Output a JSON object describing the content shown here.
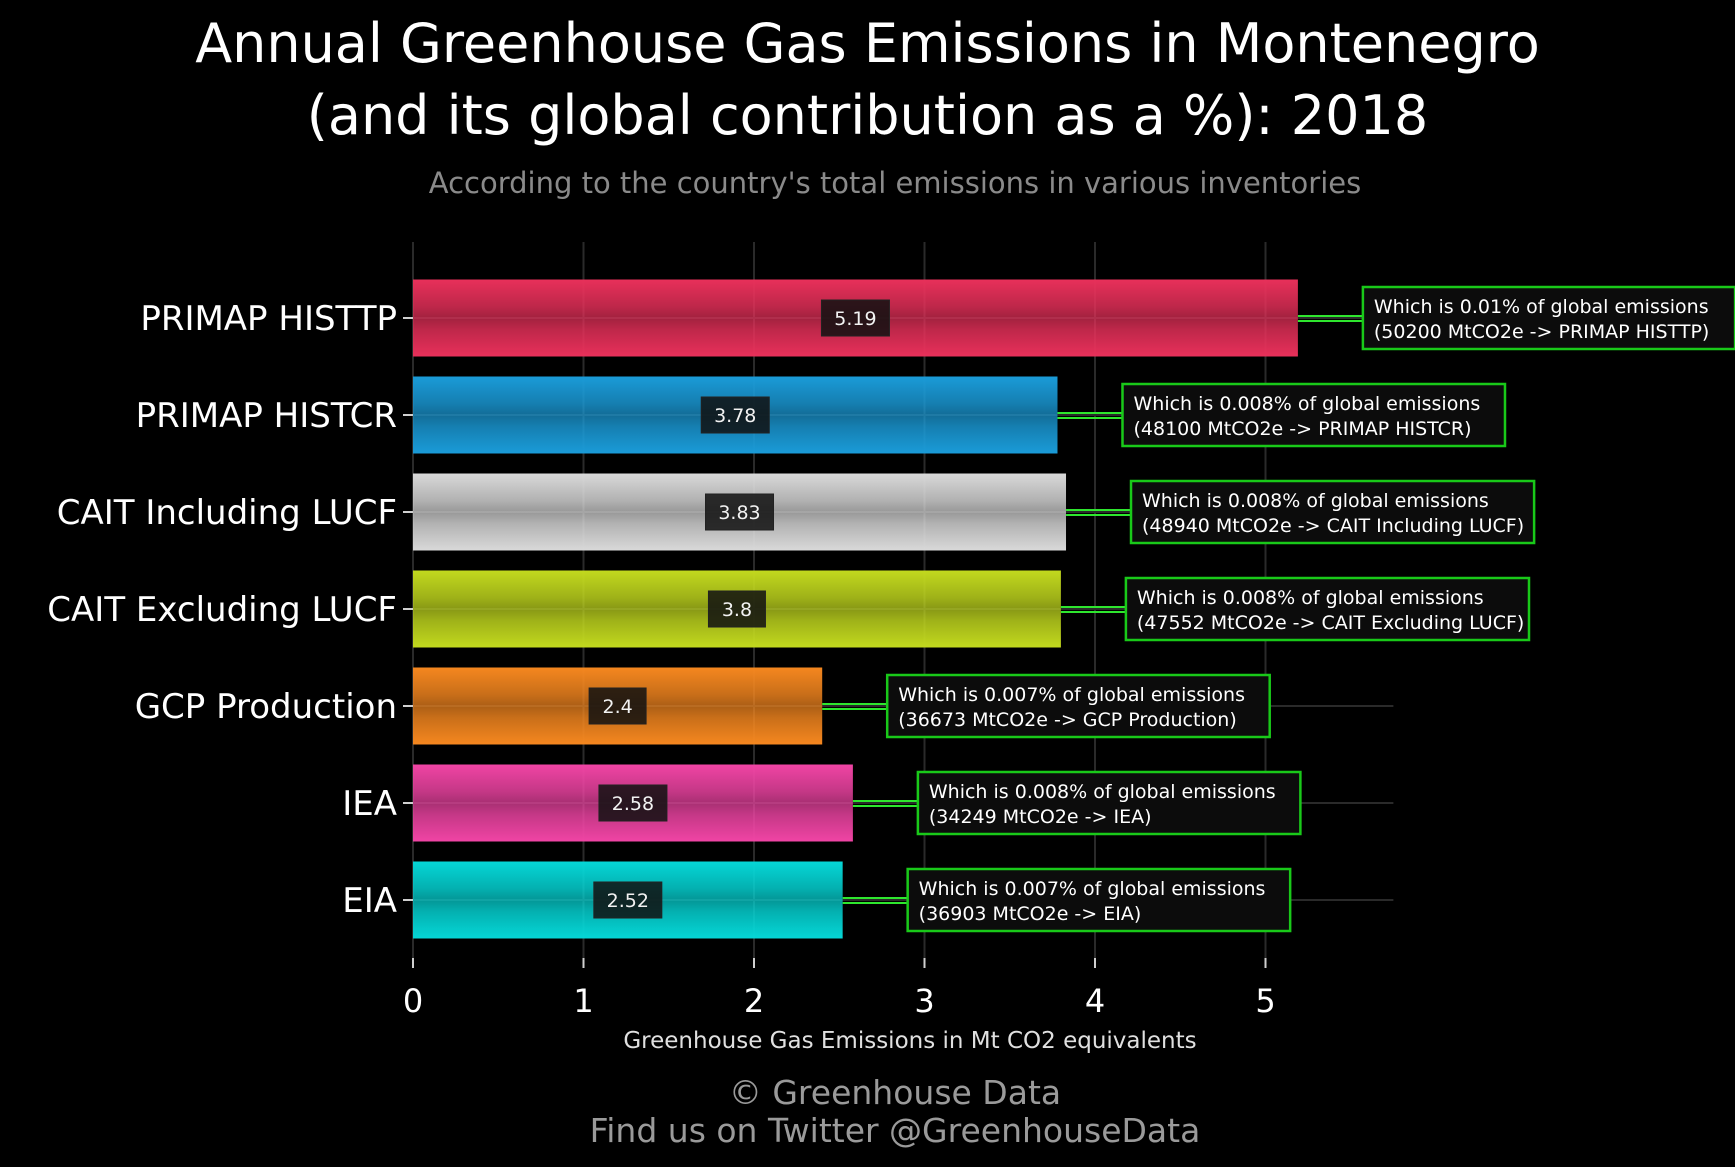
{
  "title_line1": "Annual Greenhouse Gas Emissions in Montenegro",
  "title_line2": "(and its global contribution as a %): 2018",
  "subtitle": "According to the country's total emissions in various inventories",
  "credit_line1": "© Greenhouse Data",
  "credit_line2": "Find us on Twitter @GreenhouseData",
  "chart_data": {
    "type": "bar",
    "orientation": "horizontal",
    "categories": [
      "PRIMAP HISTTP",
      "PRIMAP HISTCR",
      "CAIT Including LUCF",
      "CAIT Excluding LUCF",
      "GCP Production",
      "IEA",
      "EIA"
    ],
    "values": [
      5.19,
      3.78,
      3.83,
      3.8,
      2.4,
      2.58,
      2.52
    ],
    "value_labels": [
      "5.19",
      "3.78",
      "3.83",
      "3.8",
      "2.4",
      "2.58",
      "2.52"
    ],
    "colors": [
      "#e8305a",
      "#1a9bd8",
      "#d9d9d9",
      "#c2d91e",
      "#f5871f",
      "#f044a4",
      "#05d7d7"
    ],
    "annotations": [
      [
        "Which is 0.01% of global emissions",
        "(50200 MtCO2e -> PRIMAP HISTTP)"
      ],
      [
        "Which is 0.008% of global emissions",
        "(48100 MtCO2e -> PRIMAP HISTCR)"
      ],
      [
        "Which is 0.008% of global emissions",
        "(48940 MtCO2e -> CAIT Including LUCF)"
      ],
      [
        "Which is 0.008% of global emissions",
        "(47552 MtCO2e -> CAIT Excluding LUCF)"
      ],
      [
        "Which is 0.007% of global emissions",
        "(36673 MtCO2e -> GCP Production)"
      ],
      [
        "Which is 0.008% of global emissions",
        "(34249 MtCO2e -> IEA)"
      ],
      [
        "Which is 0.007% of global emissions",
        "(36903 MtCO2e -> EIA)"
      ]
    ],
    "xlabel": "Greenhouse Gas Emissions in Mt CO2 equivalents",
    "xticks": [
      0,
      1,
      2,
      3,
      4,
      5
    ],
    "xlim": [
      0,
      5.83
    ],
    "grid": true,
    "annotation_border_color": "#19c919",
    "connector_color": "#2ee62e"
  }
}
